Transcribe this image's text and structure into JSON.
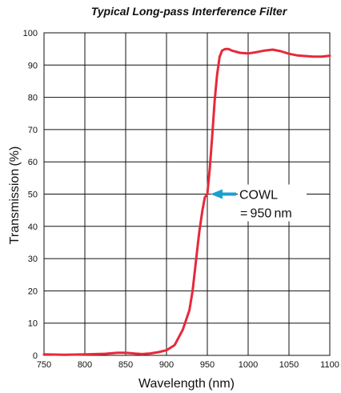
{
  "chart_data": {
    "type": "line",
    "title": "Typical Long-pass Interference Filter",
    "xlabel": "Wavelength (nm)",
    "ylabel": "Transmission (%)",
    "xlim": [
      750,
      1100
    ],
    "ylim": [
      0,
      100
    ],
    "x_ticks": [
      750,
      800,
      850,
      900,
      950,
      1000,
      1050,
      1100
    ],
    "y_ticks": [
      0,
      10,
      20,
      30,
      40,
      50,
      60,
      70,
      80,
      90,
      100
    ],
    "grid": true,
    "series": [
      {
        "color": "#e8283a",
        "x": [
          750,
          775,
          800,
          825,
          840,
          850,
          860,
          870,
          880,
          890,
          900,
          910,
          920,
          928,
          932,
          936,
          940,
          944,
          947,
          950,
          953,
          956,
          959,
          962,
          965,
          968,
          972,
          976,
          980,
          990,
          1000,
          1010,
          1020,
          1030,
          1040,
          1050,
          1060,
          1070,
          1080,
          1090,
          1100
        ],
        "y": [
          0.3,
          0.2,
          0.3,
          0.5,
          0.8,
          0.8,
          0.6,
          0.4,
          0.6,
          1.0,
          1.6,
          3.2,
          8.0,
          14.0,
          20.0,
          29.0,
          38.0,
          45.0,
          49.0,
          50.0,
          58.0,
          68.0,
          79.0,
          87.0,
          92.5,
          94.5,
          95.0,
          95.0,
          94.5,
          93.8,
          93.6,
          94.0,
          94.5,
          94.8,
          94.3,
          93.5,
          93.0,
          92.8,
          92.6,
          92.6,
          92.9
        ]
      }
    ],
    "annotations": [
      {
        "line1": "COWL",
        "line2": "= 950 nm",
        "x": 950,
        "y": 50,
        "arrow_color": "#1aa0d0"
      }
    ]
  }
}
